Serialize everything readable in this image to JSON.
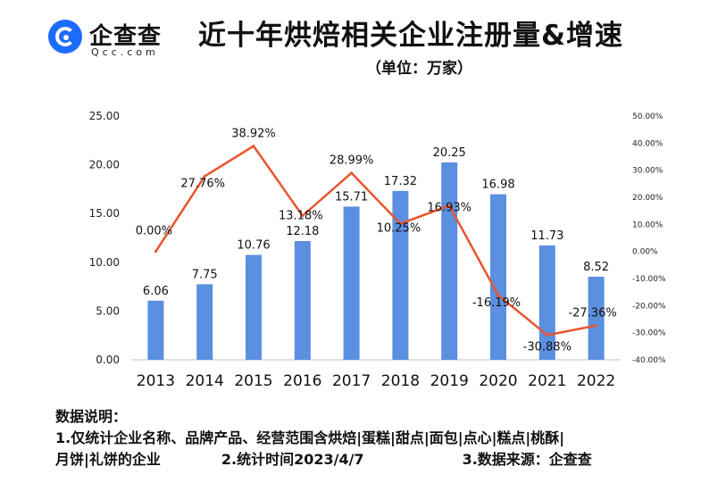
{
  "brand": {
    "name": "企查查",
    "domain": "Qcc.com"
  },
  "title": "近十年烘焙相关企业注册量&增速",
  "subtitle": "（单位：万家）",
  "chart_data": {
    "type": "bar",
    "categories": [
      "2013",
      "2014",
      "2015",
      "2016",
      "2017",
      "2018",
      "2019",
      "2020",
      "2021",
      "2022"
    ],
    "series": [
      {
        "type": "bar",
        "axis": "left",
        "values": [
          6.06,
          7.75,
          10.76,
          12.18,
          15.71,
          17.32,
          20.25,
          16.98,
          11.73,
          8.52
        ],
        "labels": [
          "6.06",
          "7.75",
          "10.76",
          "12.18",
          "15.71",
          "17.32",
          "20.25",
          "16.98",
          "11.73",
          "8.52"
        ],
        "color": "#5b8fe0"
      },
      {
        "type": "line",
        "axis": "right",
        "values": [
          0.0,
          27.76,
          38.92,
          13.18,
          28.99,
          10.25,
          16.93,
          -16.19,
          -30.88,
          -27.36
        ],
        "labels": [
          "0.00%",
          "27.76%",
          "38.92%",
          "13.18%",
          "28.99%",
          "10.25%",
          "16.93%",
          "-16.19%",
          "-30.88%",
          "-27.36%"
        ],
        "color": "#e8552e"
      }
    ],
    "left_axis": {
      "ylim": [
        0,
        25
      ],
      "ticks": [
        "0.00",
        "5.00",
        "10.00",
        "15.00",
        "20.00",
        "25.00"
      ]
    },
    "right_axis": {
      "ylim": [
        -40,
        50
      ],
      "ticks": [
        "-40.00%",
        "-30.00%",
        "-20.00%",
        "-10.00%",
        "0.00%",
        "10.00%",
        "20.00%",
        "30.00%",
        "40.00%",
        "50.00%"
      ]
    },
    "grid": false,
    "legend": "none"
  },
  "notes": {
    "heading": "数据说明：",
    "line1": "1.仅统计企业名称、品牌产品、经营范围含烘焙|蛋糕|甜点|面包|点心|糕点|桃酥|",
    "line2_a": "月饼|礼饼的企业",
    "line2_b": "2.统计时间2023/4/7",
    "line2_c": "3.数据来源：企查查"
  }
}
